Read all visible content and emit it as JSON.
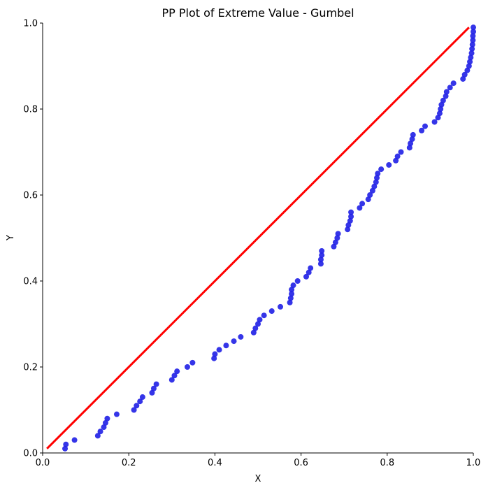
{
  "chart_data": {
    "type": "scatter",
    "title": "PP Plot of Extreme Value - Gumbel",
    "xlabel": "X",
    "ylabel": "Y",
    "xlim": [
      0,
      1
    ],
    "ylim": [
      0,
      1
    ],
    "xticks": [
      "0.0",
      "0.2",
      "0.4",
      "0.6",
      "0.8",
      "1.0"
    ],
    "yticks": [
      "0.0",
      "0.2",
      "0.4",
      "0.6",
      "0.8",
      "1.0"
    ],
    "grid": false,
    "reference_line": {
      "x": [
        0.01,
        0.99
      ],
      "y": [
        0.01,
        0.99
      ],
      "color": "#ff0000"
    },
    "point_color": "#1f1fe6",
    "points": [
      [
        0.052,
        0.01
      ],
      [
        0.054,
        0.02
      ],
      [
        0.074,
        0.03
      ],
      [
        0.128,
        0.04
      ],
      [
        0.134,
        0.05
      ],
      [
        0.142,
        0.06
      ],
      [
        0.146,
        0.07
      ],
      [
        0.15,
        0.08
      ],
      [
        0.172,
        0.09
      ],
      [
        0.212,
        0.1
      ],
      [
        0.218,
        0.11
      ],
      [
        0.226,
        0.12
      ],
      [
        0.232,
        0.13
      ],
      [
        0.254,
        0.14
      ],
      [
        0.258,
        0.15
      ],
      [
        0.264,
        0.16
      ],
      [
        0.3,
        0.17
      ],
      [
        0.306,
        0.18
      ],
      [
        0.312,
        0.19
      ],
      [
        0.336,
        0.2
      ],
      [
        0.348,
        0.21
      ],
      [
        0.398,
        0.22
      ],
      [
        0.4,
        0.23
      ],
      [
        0.41,
        0.24
      ],
      [
        0.426,
        0.25
      ],
      [
        0.444,
        0.26
      ],
      [
        0.46,
        0.27
      ],
      [
        0.49,
        0.28
      ],
      [
        0.494,
        0.29
      ],
      [
        0.5,
        0.3
      ],
      [
        0.504,
        0.31
      ],
      [
        0.514,
        0.32
      ],
      [
        0.532,
        0.33
      ],
      [
        0.552,
        0.34
      ],
      [
        0.574,
        0.35
      ],
      [
        0.576,
        0.36
      ],
      [
        0.578,
        0.37
      ],
      [
        0.578,
        0.38
      ],
      [
        0.582,
        0.39
      ],
      [
        0.592,
        0.4
      ],
      [
        0.612,
        0.41
      ],
      [
        0.618,
        0.42
      ],
      [
        0.622,
        0.43
      ],
      [
        0.646,
        0.44
      ],
      [
        0.646,
        0.45
      ],
      [
        0.648,
        0.46
      ],
      [
        0.648,
        0.47
      ],
      [
        0.676,
        0.48
      ],
      [
        0.68,
        0.49
      ],
      [
        0.684,
        0.5
      ],
      [
        0.686,
        0.51
      ],
      [
        0.708,
        0.52
      ],
      [
        0.71,
        0.53
      ],
      [
        0.714,
        0.54
      ],
      [
        0.716,
        0.55
      ],
      [
        0.716,
        0.56
      ],
      [
        0.736,
        0.57
      ],
      [
        0.742,
        0.58
      ],
      [
        0.756,
        0.59
      ],
      [
        0.76,
        0.6
      ],
      [
        0.766,
        0.61
      ],
      [
        0.77,
        0.62
      ],
      [
        0.774,
        0.63
      ],
      [
        0.776,
        0.64
      ],
      [
        0.778,
        0.65
      ],
      [
        0.786,
        0.66
      ],
      [
        0.804,
        0.67
      ],
      [
        0.82,
        0.68
      ],
      [
        0.824,
        0.69
      ],
      [
        0.832,
        0.7
      ],
      [
        0.852,
        0.71
      ],
      [
        0.854,
        0.72
      ],
      [
        0.858,
        0.73
      ],
      [
        0.86,
        0.74
      ],
      [
        0.88,
        0.75
      ],
      [
        0.888,
        0.76
      ],
      [
        0.91,
        0.77
      ],
      [
        0.918,
        0.78
      ],
      [
        0.922,
        0.79
      ],
      [
        0.924,
        0.8
      ],
      [
        0.926,
        0.81
      ],
      [
        0.93,
        0.82
      ],
      [
        0.936,
        0.83
      ],
      [
        0.938,
        0.84
      ],
      [
        0.946,
        0.85
      ],
      [
        0.954,
        0.86
      ],
      [
        0.976,
        0.87
      ],
      [
        0.98,
        0.88
      ],
      [
        0.986,
        0.89
      ],
      [
        0.99,
        0.9
      ],
      [
        0.992,
        0.91
      ],
      [
        0.994,
        0.92
      ],
      [
        0.996,
        0.93
      ],
      [
        0.997,
        0.94
      ],
      [
        0.998,
        0.95
      ],
      [
        0.999,
        0.96
      ],
      [
        0.999,
        0.97
      ],
      [
        1.0,
        0.98
      ],
      [
        1.0,
        0.99
      ]
    ]
  }
}
